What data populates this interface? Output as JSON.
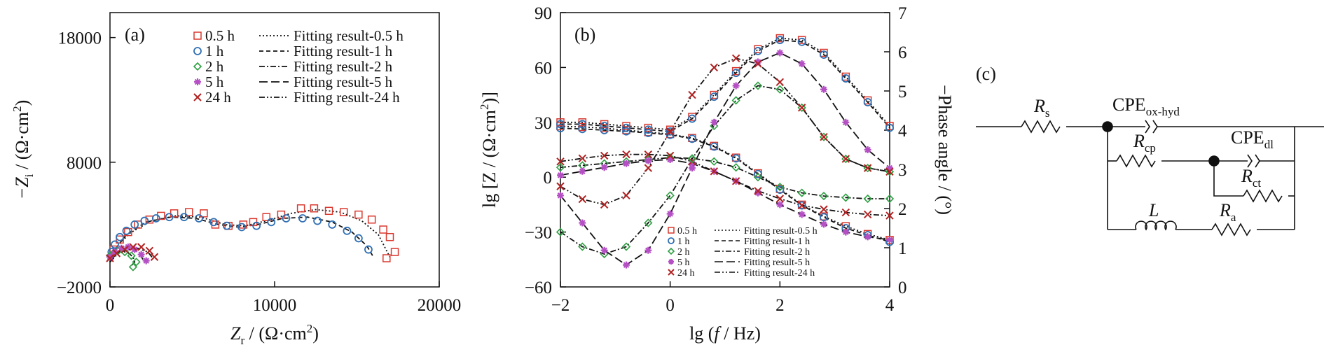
{
  "colors": {
    "s05": "#d9382e",
    "s1": "#2f6fb3",
    "s2": "#2ea043",
    "s5": "#b44fc4",
    "s24": "#b22222",
    "fit": "#111111",
    "axis": "#111111"
  },
  "chart_data": [
    {
      "type": "scatter",
      "panel_label": "(a)",
      "xlabel_parts": [
        "Z",
        "r",
        " / (Ω·cm",
        "2",
        ")"
      ],
      "ylabel_parts": [
        "−Z",
        "i",
        " / (Ω·cm",
        "2",
        ")"
      ],
      "xlim": [
        0,
        20000
      ],
      "ylim": [
        -2000,
        20000
      ],
      "xticks": [
        0,
        10000,
        20000
      ],
      "xtick_labels": [
        "0",
        "10000",
        "20000"
      ],
      "yticks": [
        -2000,
        8000,
        18000
      ],
      "ytick_labels": [
        "−2000",
        "8000",
        "18000"
      ],
      "legend_position": "top-right",
      "series": [
        {
          "name": "0.5 h",
          "marker": "square",
          "color": "s05",
          "x": [
            200,
            600,
            1100,
            1700,
            2400,
            3100,
            3900,
            4800,
            5700,
            6400,
            7200,
            8100,
            8700,
            9500,
            10400,
            11600,
            12400,
            13300,
            14200,
            15100,
            15900,
            16600,
            17000,
            17300,
            16800
          ],
          "y": [
            1000,
            1800,
            2400,
            3000,
            3400,
            3700,
            3900,
            4000,
            3900,
            3000,
            2900,
            3000,
            3200,
            3600,
            3800,
            4300,
            4300,
            4100,
            4000,
            3800,
            3400,
            2600,
            2000,
            800,
            300
          ]
        },
        {
          "name": "1 h",
          "marker": "circle",
          "color": "s1",
          "x": [
            100,
            300,
            600,
            1000,
            1500,
            2100,
            2800,
            3600,
            4500,
            5400,
            6300,
            7100,
            8000,
            8900,
            9800,
            10700,
            11700,
            12600,
            13500,
            14400,
            15100,
            15700
          ],
          "y": [
            800,
            1400,
            2000,
            2500,
            3000,
            3300,
            3500,
            3600,
            3600,
            3500,
            3200,
            2900,
            2800,
            2900,
            3200,
            3500,
            3500,
            3300,
            3000,
            2500,
            1900,
            1000
          ]
        },
        {
          "name": "2 h",
          "marker": "diamond",
          "color": "s2",
          "x": [
            0,
            200,
            500,
            900,
            1300,
            1600,
            1400
          ],
          "y": [
            500,
            700,
            900,
            800,
            500,
            0,
            -400
          ]
        },
        {
          "name": "5 h",
          "marker": "star",
          "color": "s5",
          "x": [
            0,
            300,
            700,
            1100,
            1500,
            1900,
            2200
          ],
          "y": [
            400,
            800,
            1100,
            1200,
            1000,
            600,
            100
          ]
        },
        {
          "name": "24 h",
          "marker": "cross",
          "color": "s24",
          "x": [
            0,
            400,
            900,
            1400,
            1900,
            2400,
            2700
          ],
          "y": [
            300,
            700,
            1000,
            1200,
            1200,
            900,
            400
          ]
        }
      ],
      "fits": [
        {
          "name": "Fitting result-0.5 h",
          "dash": "2,3",
          "x": [
            0,
            400,
            1200,
            2500,
            4000,
            5500,
            7000,
            8200,
            9500,
            11000,
            12500,
            14000,
            15300,
            16300,
            17000
          ],
          "y": [
            0,
            1200,
            2300,
            3300,
            3700,
            3600,
            3000,
            2900,
            3300,
            3900,
            4200,
            4000,
            3300,
            2200,
            400
          ]
        },
        {
          "name": "Fitting result-1 h",
          "dash": "6,4",
          "x": [
            0,
            300,
            1000,
            2200,
            3700,
            5200,
            6600,
            7800,
            9000,
            10500,
            12000,
            13500,
            14700,
            15600,
            16000
          ],
          "y": [
            0,
            1000,
            2200,
            3200,
            3600,
            3500,
            3000,
            2800,
            3000,
            3500,
            3600,
            3200,
            2400,
            1300,
            400
          ]
        },
        {
          "name": "Fitting result-2 h",
          "dash": "8,3,2,3",
          "x": [
            0,
            300,
            700,
            1100,
            1400,
            1500,
            1300
          ],
          "y": [
            0,
            600,
            850,
            750,
            400,
            0,
            -300
          ]
        },
        {
          "name": "Fitting result-5 h",
          "dash": "12,5",
          "x": [
            0,
            400,
            900,
            1400,
            1800,
            2000
          ],
          "y": [
            0,
            700,
            1000,
            1000,
            700,
            200
          ]
        },
        {
          "name": "Fitting result-24 h",
          "dash": "8,3,2,3,2,3",
          "x": [
            0,
            500,
            1100,
            1700,
            2300,
            2600
          ],
          "y": [
            0,
            700,
            1000,
            1100,
            800,
            300
          ]
        }
      ]
    },
    {
      "type": "line",
      "panel_label": "(b)",
      "xlabel_parts": [
        "lg (",
        "f",
        " / Hz)"
      ],
      "ylabel_parts": [
        "lg [Z / (Ω·cm",
        "2",
        ")]"
      ],
      "y2label": "−Phase angle / (°)",
      "xlim": [
        -2,
        4
      ],
      "ylim": [
        -60,
        90
      ],
      "y2lim": [
        0,
        7
      ],
      "xticks": [
        -2,
        0,
        2,
        4
      ],
      "xtick_labels": [
        "−2",
        "0",
        "2",
        "4"
      ],
      "yticks": [
        -60,
        -30,
        0,
        30,
        60,
        90
      ],
      "ytick_labels": [
        "−60",
        "−30",
        "0",
        "30",
        "60",
        "90"
      ],
      "y2ticks": [
        0,
        1,
        2,
        3,
        4,
        5,
        6,
        7
      ],
      "y2tick_labels": [
        "0",
        "1",
        "2",
        "3",
        "4",
        "5",
        "6",
        "7"
      ],
      "legend_position": "bottom-center",
      "legend_names": [
        "0.5 h",
        "1 h",
        "2 h",
        "5 h",
        "24 h"
      ],
      "legend_fit_names": [
        "Fitting result-0.5 h",
        "Fitting result-1 h",
        "Fitting result-2 h",
        "Fitting result-5 h",
        "Fitting result-24 h"
      ],
      "modulus_series": [
        {
          "name": "0.5 h",
          "marker": "square",
          "color": "s05",
          "x": [
            -2,
            -1.6,
            -1.2,
            -0.8,
            -0.4,
            0,
            0.4,
            0.8,
            1.2,
            1.6,
            2,
            2.4,
            2.8,
            3.2,
            3.6,
            4
          ],
          "y2": [
            4.1,
            4.08,
            4.05,
            4.0,
            3.95,
            3.9,
            3.8,
            3.6,
            3.3,
            2.9,
            2.5,
            2.1,
            1.8,
            1.55,
            1.35,
            1.2
          ]
        },
        {
          "name": "1 h",
          "marker": "circle",
          "color": "s1",
          "x": [
            -2,
            -1.6,
            -1.2,
            -0.8,
            -0.4,
            0,
            0.4,
            0.8,
            1.2,
            1.6,
            2,
            2.4,
            2.8,
            3.2,
            3.6,
            4
          ],
          "y2": [
            4.05,
            4.03,
            4.0,
            3.97,
            3.93,
            3.88,
            3.78,
            3.58,
            3.28,
            2.88,
            2.48,
            2.08,
            1.78,
            1.5,
            1.32,
            1.15
          ]
        },
        {
          "name": "2 h",
          "marker": "diamond",
          "color": "s2",
          "x": [
            -2,
            -1.6,
            -1.2,
            -0.8,
            -0.4,
            0,
            0.4,
            0.8,
            1.2,
            1.6,
            2,
            2.4,
            2.8,
            3.2,
            3.6,
            4
          ],
          "y2": [
            3.05,
            3.1,
            3.15,
            3.2,
            3.25,
            3.3,
            3.28,
            3.2,
            3.05,
            2.8,
            2.55,
            2.4,
            2.32,
            2.28,
            2.25,
            2.25
          ]
        },
        {
          "name": "5 h",
          "marker": "star",
          "color": "s5",
          "x": [
            -2,
            -1.6,
            -1.2,
            -0.8,
            -0.4,
            0,
            0.4,
            0.8,
            1.2,
            1.6,
            2,
            2.4,
            2.8,
            3.2,
            3.6,
            4
          ],
          "y2": [
            2.85,
            2.95,
            3.05,
            3.15,
            3.22,
            3.25,
            3.15,
            2.95,
            2.7,
            2.4,
            2.1,
            1.85,
            1.6,
            1.4,
            1.28,
            1.2
          ]
        },
        {
          "name": "24 h",
          "marker": "cross",
          "color": "s24",
          "x": [
            -2,
            -1.6,
            -1.2,
            -0.8,
            -0.4,
            0,
            0.4,
            0.8,
            1.2,
            1.6,
            2,
            2.4,
            2.8,
            3.2,
            3.6,
            4
          ],
          "y2": [
            3.2,
            3.28,
            3.35,
            3.38,
            3.38,
            3.35,
            3.2,
            2.95,
            2.7,
            2.45,
            2.25,
            2.08,
            1.98,
            1.9,
            1.85,
            1.82
          ]
        }
      ],
      "phase_series": [
        {
          "name": "0.5 h",
          "marker": "square",
          "color": "s05",
          "x": [
            -2,
            -1.6,
            -1.2,
            -0.8,
            -0.4,
            0,
            0.4,
            0.8,
            1.2,
            1.6,
            2,
            2.4,
            2.8,
            3.2,
            3.6,
            4
          ],
          "y": [
            30,
            30,
            29,
            28,
            27,
            26,
            33,
            45,
            58,
            70,
            76,
            75,
            68,
            55,
            42,
            28
          ]
        },
        {
          "name": "1 h",
          "marker": "circle",
          "color": "s1",
          "x": [
            -2,
            -1.6,
            -1.2,
            -0.8,
            -0.4,
            0,
            0.4,
            0.8,
            1.2,
            1.6,
            2,
            2.4,
            2.8,
            3.2,
            3.6,
            4
          ],
          "y": [
            29,
            29,
            28,
            27,
            26,
            25,
            32,
            44,
            57,
            69,
            75,
            74,
            67,
            54,
            41,
            27
          ]
        },
        {
          "name": "2 h",
          "marker": "diamond",
          "color": "s2",
          "x": [
            -2,
            -1.6,
            -1.2,
            -0.8,
            -0.4,
            0,
            0.4,
            0.8,
            1.2,
            1.6,
            2,
            2.4,
            2.8,
            3.2,
            3.6,
            4
          ],
          "y": [
            -30,
            -38,
            -42,
            -38,
            -25,
            -10,
            10,
            28,
            42,
            50,
            48,
            38,
            22,
            10,
            5,
            3
          ]
        },
        {
          "name": "5 h",
          "marker": "star",
          "color": "s5",
          "x": [
            -2,
            -1.6,
            -1.2,
            -0.8,
            -0.4,
            0,
            0.4,
            0.8,
            1.2,
            1.6,
            2,
            2.4,
            2.8,
            3.2,
            3.6,
            4
          ],
          "y": [
            -10,
            -25,
            -40,
            -48,
            -40,
            -20,
            5,
            30,
            50,
            63,
            68,
            62,
            48,
            30,
            15,
            5
          ]
        },
        {
          "name": "24 h",
          "marker": "cross",
          "color": "s24",
          "x": [
            -2,
            -1.6,
            -1.2,
            -0.8,
            -0.4,
            0,
            0.4,
            0.8,
            1.2,
            1.6,
            2,
            2.4,
            2.8,
            3.2,
            3.6,
            4
          ],
          "y": [
            -5,
            -12,
            -15,
            -10,
            5,
            25,
            45,
            60,
            65,
            62,
            52,
            38,
            22,
            10,
            5,
            3
          ]
        }
      ]
    },
    {
      "type": "diagram",
      "panel_label": "(c)",
      "components": [
        {
          "main": "R",
          "sub": "s"
        },
        {
          "main": "CPE",
          "sub": "ox-hyd"
        },
        {
          "main": "R",
          "sub": "cp"
        },
        {
          "main": "CPE",
          "sub": "dl"
        },
        {
          "main": "R",
          "sub": "ct"
        },
        {
          "main": "L",
          "sub": ""
        },
        {
          "main": "R",
          "sub": "a"
        }
      ]
    }
  ]
}
